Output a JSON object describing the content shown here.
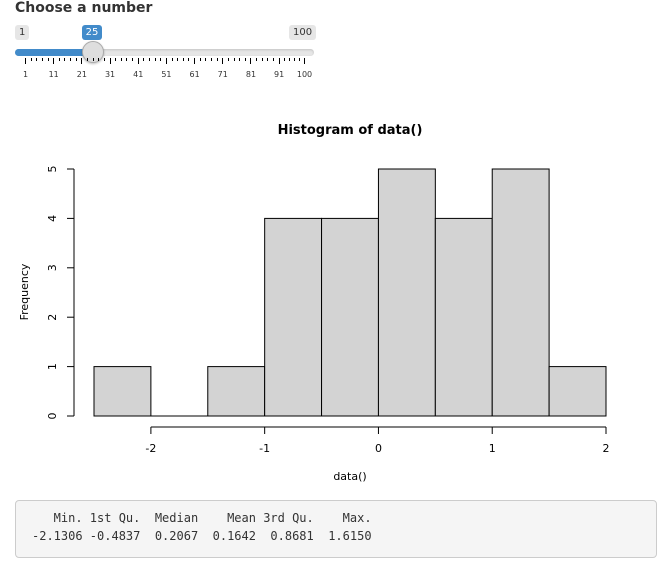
{
  "slider": {
    "label": "Choose a number",
    "min": 1,
    "max": 100,
    "value": 25,
    "min_label": "1",
    "max_label": "100",
    "value_label": "25",
    "grid_labels": [
      "1",
      "11",
      "21",
      "31",
      "41",
      "51",
      "61",
      "71",
      "81",
      "91",
      "100"
    ],
    "accent_color": "#428bca"
  },
  "chart_data": {
    "type": "bar",
    "title": "Histogram of data()",
    "xlabel": "data()",
    "ylabel": "Frequency",
    "bins": [
      {
        "from": -2.5,
        "to": -2.0,
        "count": 1
      },
      {
        "from": -2.0,
        "to": -1.5,
        "count": 0
      },
      {
        "from": -1.5,
        "to": -1.0,
        "count": 1
      },
      {
        "from": -1.0,
        "to": -0.5,
        "count": 4
      },
      {
        "from": -0.5,
        "to": 0.0,
        "count": 4
      },
      {
        "from": 0.0,
        "to": 0.5,
        "count": 5
      },
      {
        "from": 0.5,
        "to": 1.0,
        "count": 4
      },
      {
        "from": 1.0,
        "to": 1.5,
        "count": 5
      },
      {
        "from": 1.5,
        "to": 2.0,
        "count": 1
      }
    ],
    "xticks": [
      "-2",
      "-1",
      "0",
      "1",
      "2"
    ],
    "yticks": [
      "0",
      "1",
      "2",
      "3",
      "4",
      "5"
    ],
    "xlim": [
      -2.5,
      2.0
    ],
    "ylim": [
      0,
      5
    ],
    "bar_color": "#d3d3d3"
  },
  "summary": {
    "header": "   Min. 1st Qu.  Median    Mean 3rd Qu.    Max. ",
    "values": "-2.1306 -0.4837  0.2067  0.1642  0.8681  1.6150 "
  }
}
